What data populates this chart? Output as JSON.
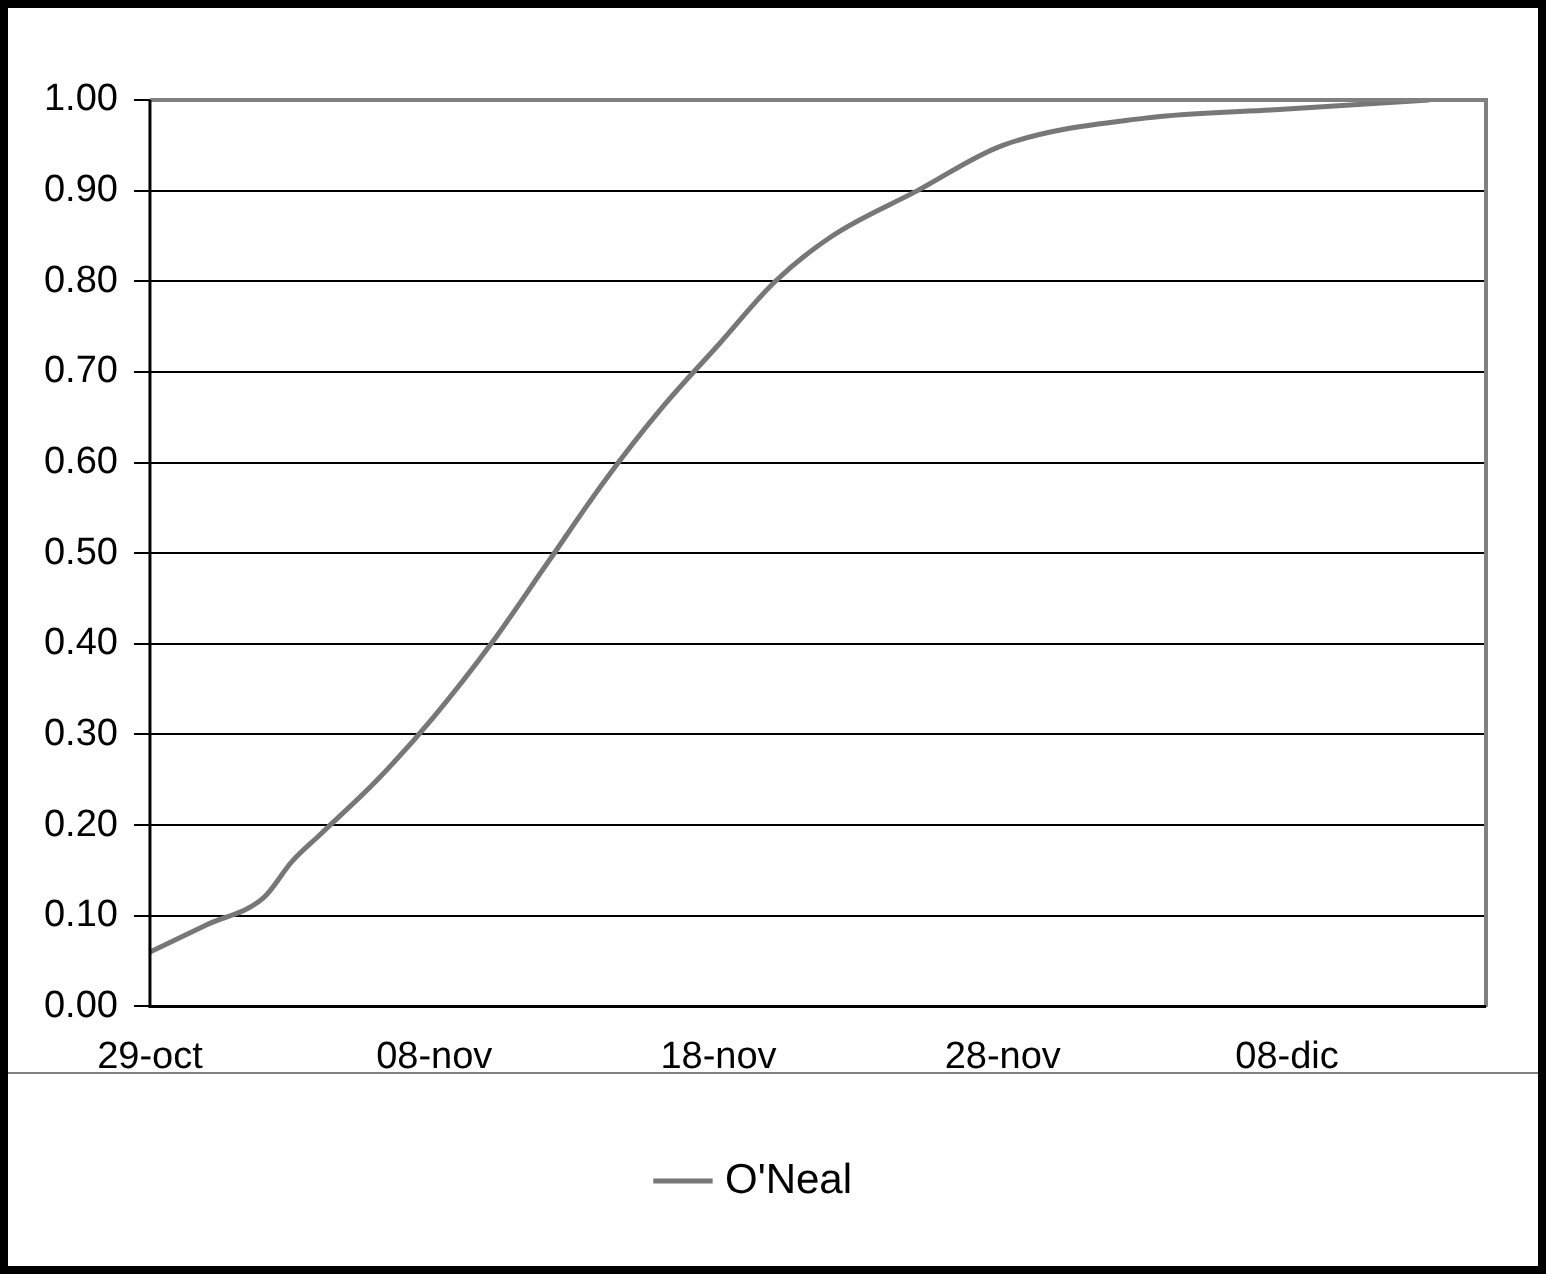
{
  "chart_data": {
    "type": "line",
    "x": [
      "--10-29",
      "--10-31",
      "--11-02",
      "--11-03",
      "--11-04",
      "--11-06",
      "--11-08",
      "--11-10",
      "--11-12",
      "--11-14",
      "--11-16",
      "--11-18",
      "--11-20",
      "--11-22",
      "--11-25",
      "--11-28",
      "--12-03",
      "--12-08",
      "--12-13"
    ],
    "series": [
      {
        "name": "O'Neal",
        "color": "#777777",
        "values": [
          0.06,
          0.09,
          0.12,
          0.16,
          0.19,
          0.25,
          0.32,
          0.4,
          0.49,
          0.58,
          0.66,
          0.73,
          0.8,
          0.85,
          0.9,
          0.95,
          0.98,
          0.99,
          1.0
        ]
      }
    ],
    "xlim": [
      "--10-29",
      "--12-15"
    ],
    "xticks": [
      {
        "value": "--10-29",
        "label": "29-oct"
      },
      {
        "value": "--11-08",
        "label": "08-nov"
      },
      {
        "value": "--11-18",
        "label": "18-nov"
      },
      {
        "value": "--11-28",
        "label": "28-nov"
      },
      {
        "value": "--12-08",
        "label": "08-dic"
      }
    ],
    "ylim": [
      0,
      1
    ],
    "yticks": [
      {
        "value": 0,
        "label": "0.00"
      },
      {
        "value": 0.1,
        "label": "0.10"
      },
      {
        "value": 0.2,
        "label": "0.20"
      },
      {
        "value": 0.3,
        "label": "0.30"
      },
      {
        "value": 0.4,
        "label": "0.40"
      },
      {
        "value": 0.5,
        "label": "0.50"
      },
      {
        "value": 0.6,
        "label": "0.60"
      },
      {
        "value": 0.7,
        "label": "0.70"
      },
      {
        "value": 0.8,
        "label": "0.80"
      },
      {
        "value": 0.9,
        "label": "0.90"
      },
      {
        "value": 1,
        "label": "1.00"
      }
    ],
    "grid": "y",
    "legend": "bottom",
    "marker": "none",
    "line_style": "solid"
  }
}
